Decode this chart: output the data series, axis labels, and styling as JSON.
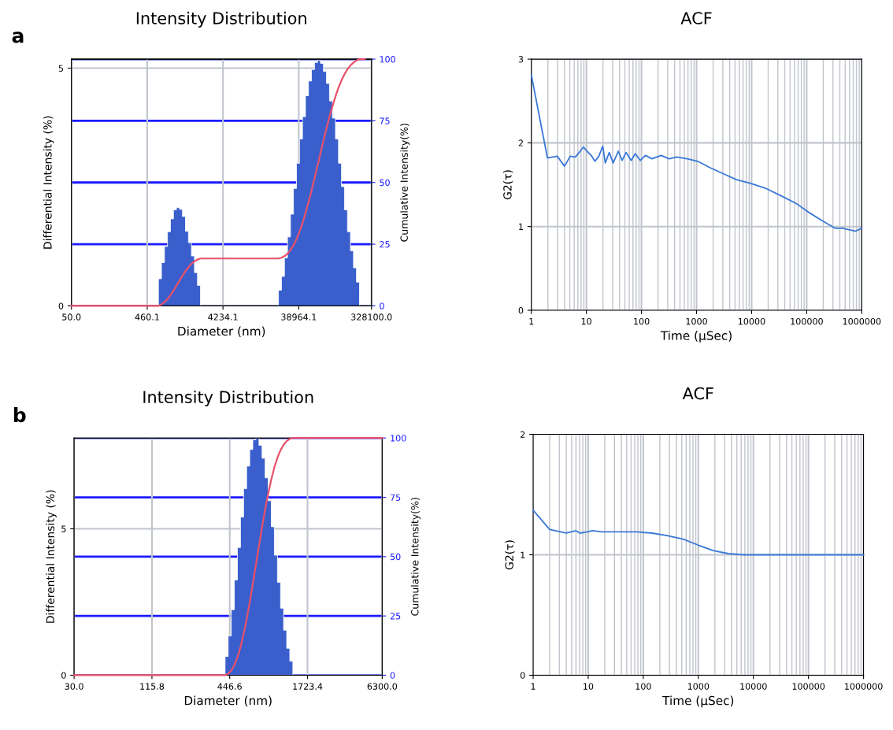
{
  "chart_data": [
    {
      "type": "histogram",
      "title": "Intensity Distribution",
      "xlabel": "Diameter (nm)",
      "ylabel": "Differential Intensity (%)",
      "y2label": "Cumulative Intensity(%)",
      "annotations": [
        "a"
      ],
      "log": "x",
      "grid": true,
      "color": "#3a5fcd",
      "bins": [
        639.6,
        698.4,
        762.5,
        832.6,
        909.1,
        992.6,
        1083.8,
        1183.3,
        1292.0,
        1410.7,
        1540.3,
        1681.8,
        1836.3,
        2005.1,
        2189.3,
        2390.4,
        2610.0,
        2849.7,
        3111.6,
        3397.4,
        3709.5,
        4050.3,
        4422.4,
        4828.7,
        5272.3,
        5756.6,
        6285.5,
        6862.9,
        7493.4,
        8181.8,
        8933.5,
        9754.2,
        10650.3,
        11628.7,
        12697.0,
        13863.5,
        15137.1,
        16527.8,
        18046.1,
        19704.0,
        21514.2,
        23490.7,
        25648.7,
        28005.0,
        30577.8,
        33387.0,
        36454.2,
        39803.2,
        43459.8,
        47452.4,
        51811.8,
        56571.7,
        61768.8,
        67443.4,
        73639.4,
        80404.5,
        87791.2,
        95856.4,
        104662.6,
        114277.8,
        124776.3,
        136239.4,
        148755.5,
        162421.4,
        177342.9,
        193635.1,
        211424.1,
        230847.3
      ],
      "values": [
        0.57,
        0.91,
        1.25,
        1.56,
        1.83,
        2.02,
        2.07,
        2.03,
        1.88,
        1.57,
        1.33,
        1.05,
        0.7,
        0.43,
        0,
        0,
        0,
        0,
        0,
        0,
        0,
        0,
        0,
        0,
        0,
        0,
        0,
        0,
        0,
        0,
        0,
        0,
        0,
        0,
        0,
        0,
        0,
        0,
        0,
        0,
        0.33,
        0.62,
        1.01,
        1.45,
        1.93,
        2.47,
        3.0,
        3.51,
        3.98,
        4.42,
        4.73,
        4.97,
        5.12,
        5.17,
        5.1,
        4.93,
        4.68,
        4.31,
        3.95,
        3.51,
        3.0,
        2.51,
        2.02,
        1.56,
        1.16,
        0.8,
        0.5
      ],
      "series": [
        {
          "type": "line",
          "axis": "y2",
          "color": "#e8506a",
          "x": [
            50,
            639.6,
            698.4,
            762.5,
            832.6,
            909.1,
            992.6,
            1083.8,
            1183.3,
            1292.0,
            1410.7,
            1540.3,
            1681.8,
            1836.3,
            2005.1,
            2189.3,
            21514.2,
            23490.7,
            25648.7,
            28005.0,
            30577.8,
            33387.0,
            36454.2,
            39803.2,
            43459.8,
            47452.4,
            51811.8,
            56571.7,
            61768.8,
            67443.4,
            73639.4,
            80404.5,
            87791.2,
            95856.4,
            104662.6,
            114277.8,
            124776.3,
            136239.4,
            148755.5,
            162421.4,
            177342.9,
            193635.1,
            211424.1,
            230847.3,
            270000
          ],
          "values": [
            0,
            0,
            0.57,
            1.48,
            2.73,
            4.29,
            6.12,
            8.14,
            10.21,
            12.24,
            14.12,
            15.69,
            17.02,
            18.07,
            18.77,
            19.2,
            19.2,
            19.53,
            20.15,
            21.16,
            22.61,
            24.54,
            27.01,
            30.01,
            33.52,
            37.5,
            41.92,
            46.65,
            51.62,
            56.74,
            61.91,
            67.01,
            71.94,
            76.62,
            80.93,
            84.88,
            88.39,
            91.39,
            93.9,
            95.92,
            97.48,
            98.64,
            99.44,
            100,
            100
          ]
        }
      ],
      "xlim": [
        50,
        328100
      ],
      "xticks": [
        {
          "value": 50,
          "label": "50.0"
        },
        460.1,
        4234.1,
        38964.1,
        {
          "value": 328100,
          "label": "328100.0"
        }
      ],
      "ylim": [
        0,
        5.19
      ],
      "yticks": [
        0,
        5
      ],
      "y2lim": [
        0,
        100
      ],
      "y2ticks": [
        0,
        25,
        50,
        75,
        100
      ]
    },
    {
      "type": "line",
      "title": "ACF",
      "xlabel": "Time (µSec)",
      "ylabel": "G2(τ)",
      "log": "x",
      "grid": true,
      "series": [
        {
          "color": "#3a78d8",
          "x": [
            1,
            1.96,
            2.96,
            4.0,
            5.1,
            6.3,
            7.4,
            8.8,
            10.3,
            12.2,
            14.3,
            16.8,
            19.8,
            22,
            26,
            30.6,
            38,
            44.5,
            52.5,
            65,
            77,
            95.5,
            118,
            155,
            227,
            316,
            437,
            676,
            1050,
            1800,
            3100,
            5300,
            9100,
            17600,
            33700,
            64800,
            112000,
            191000,
            327000,
            452000,
            780000,
            1000000
          ],
          "values": [
            2.81,
            1.82,
            1.84,
            1.72,
            1.84,
            1.83,
            1.885,
            1.95,
            1.9,
            1.85,
            1.78,
            1.84,
            1.96,
            1.76,
            1.885,
            1.76,
            1.9,
            1.79,
            1.885,
            1.79,
            1.87,
            1.79,
            1.85,
            1.81,
            1.85,
            1.81,
            1.83,
            1.81,
            1.78,
            1.7,
            1.63,
            1.56,
            1.52,
            1.46,
            1.37,
            1.275,
            1.165,
            1.07,
            0.98,
            0.98,
            0.945,
            0.98
          ]
        }
      ],
      "xlim": [
        1,
        1000000
      ],
      "xticks": [
        1,
        10,
        100,
        1000,
        10000,
        100000,
        1000000
      ],
      "ylim": [
        0,
        3
      ],
      "yticks": [
        0,
        1,
        2,
        3
      ]
    },
    {
      "type": "histogram",
      "title": "Intensity Distribution",
      "xlabel": "Diameter (nm)",
      "ylabel": "Differential Intensity (%)",
      "y2label": "Cumulative Intensity(%)",
      "annotations": [
        "b"
      ],
      "log": "x",
      "grid": true,
      "color": "#3a5fcd",
      "bins": [
        412.1,
        434.7,
        458.6,
        483.8,
        510.4,
        538.4,
        568.0,
        599.2,
        632.1,
        666.8,
        703.4,
        742.1,
        782.8,
        825.8,
        871.2,
        919.1,
        969.5,
        1022.8,
        1079.0,
        1138.2,
        1200.7,
        1266.7,
        1336.3
      ],
      "values": [
        0.64,
        1.34,
        2.24,
        3.25,
        4.36,
        5.4,
        6.37,
        7.14,
        7.71,
        8.04,
        8.1,
        7.85,
        7.41,
        6.74,
        5.96,
        5.07,
        4.1,
        3.17,
        2.29,
        1.54,
        0.92,
        0.48
      ],
      "series": [
        {
          "type": "line",
          "axis": "y2",
          "color": "#e8506a",
          "x": [
            30,
            412.1,
            434.7,
            458.6,
            483.8,
            510.4,
            538.4,
            568.0,
            599.2,
            632.1,
            666.8,
            703.4,
            742.1,
            782.8,
            825.8,
            871.2,
            919.1,
            969.5,
            1022.8,
            1079.0,
            1138.2,
            1200.7,
            1266.7,
            1336.3,
            6300
          ],
          "values": [
            0,
            0,
            0.64,
            1.98,
            4.22,
            7.47,
            11.83,
            17.23,
            23.6,
            30.74,
            38.45,
            46.49,
            54.59,
            62.44,
            69.85,
            76.59,
            82.55,
            87.62,
            91.72,
            94.89,
            97.18,
            98.72,
            99.64,
            100,
            100
          ]
        }
      ],
      "xlim": [
        30,
        6300
      ],
      "xticks": [
        {
          "value": 30,
          "label": "30.0"
        },
        115.8,
        446.6,
        1723.4,
        {
          "value": 6300,
          "label": "6300.0"
        }
      ],
      "ylim": [
        0,
        8.1
      ],
      "yticks": [
        0,
        5
      ],
      "y2lim": [
        0,
        100
      ],
      "y2ticks": [
        0,
        25,
        50,
        75,
        100
      ]
    },
    {
      "type": "line",
      "title": "ACF",
      "xlabel": "Time (µSec)",
      "ylabel": "G2(τ)",
      "log": "x",
      "grid": true,
      "series": [
        {
          "color": "#3a78d8",
          "x": [
            1,
            2.0,
            4.0,
            6.0,
            7.1,
            9.5,
            12,
            17.5,
            33,
            50,
            77,
            144,
            270,
            530,
            1000,
            1850,
            3500,
            6600,
            19000,
            155000,
            1000000
          ],
          "values": [
            1.37,
            1.21,
            1.18,
            1.2,
            1.18,
            1.19,
            1.2,
            1.19,
            1.19,
            1.19,
            1.19,
            1.18,
            1.16,
            1.13,
            1.08,
            1.035,
            1.01,
            1.0,
            1.0,
            1.0,
            1.0
          ]
        }
      ],
      "xlim": [
        1,
        1000000
      ],
      "xticks": [
        1,
        10,
        100,
        1000,
        10000,
        100000,
        1000000
      ],
      "ylim": [
        0,
        2
      ],
      "yticks": [
        0,
        1,
        2
      ]
    }
  ]
}
